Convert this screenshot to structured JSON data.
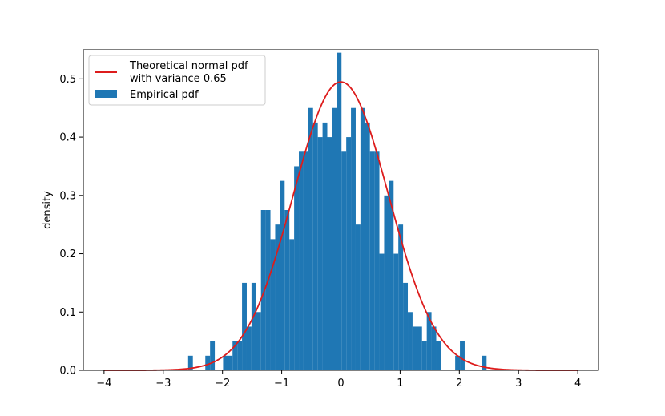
{
  "chart_data": {
    "type": "bar",
    "title": "",
    "xlabel": "",
    "ylabel": "density",
    "xlim": [
      -4.35,
      4.35
    ],
    "ylim": [
      0,
      0.55
    ],
    "grid": false,
    "legend_position": "top-left",
    "x_ticks": [
      -4,
      -3,
      -2,
      -1,
      0,
      1,
      2,
      3,
      4
    ],
    "x_tick_labels": [
      "−4",
      "−3",
      "−2",
      "−1",
      "0",
      "1",
      "2",
      "3",
      "4"
    ],
    "y_ticks": [
      0.0,
      0.1,
      0.2,
      0.3,
      0.4,
      0.5
    ],
    "y_tick_labels": [
      "0.0",
      "0.1",
      "0.2",
      "0.3",
      "0.4",
      "0.5"
    ],
    "histogram": {
      "name": "Empirical pdf",
      "color": "#1f77b4",
      "bins": [
        {
          "x0": -2.58,
          "x1": -2.5,
          "density": 0.025
        },
        {
          "x0": -2.29,
          "x1": -2.21,
          "density": 0.025
        },
        {
          "x0": -2.21,
          "x1": -2.13,
          "density": 0.05
        },
        {
          "x0": -1.99,
          "x1": -1.91,
          "density": 0.025
        },
        {
          "x0": -1.91,
          "x1": -1.83,
          "density": 0.025
        },
        {
          "x0": -1.83,
          "x1": -1.75,
          "density": 0.05
        },
        {
          "x0": -1.75,
          "x1": -1.67,
          "density": 0.05
        },
        {
          "x0": -1.67,
          "x1": -1.59,
          "density": 0.15
        },
        {
          "x0": -1.59,
          "x1": -1.51,
          "density": 0.075
        },
        {
          "x0": -1.51,
          "x1": -1.43,
          "density": 0.15
        },
        {
          "x0": -1.43,
          "x1": -1.35,
          "density": 0.1
        },
        {
          "x0": -1.35,
          "x1": -1.27,
          "density": 0.275
        },
        {
          "x0": -1.27,
          "x1": -1.19,
          "density": 0.275
        },
        {
          "x0": -1.19,
          "x1": -1.11,
          "density": 0.225
        },
        {
          "x0": -1.11,
          "x1": -1.03,
          "density": 0.25
        },
        {
          "x0": -1.03,
          "x1": -0.95,
          "density": 0.325
        },
        {
          "x0": -0.95,
          "x1": -0.87,
          "density": 0.275
        },
        {
          "x0": -0.87,
          "x1": -0.79,
          "density": 0.225
        },
        {
          "x0": -0.79,
          "x1": -0.71,
          "density": 0.35
        },
        {
          "x0": -0.71,
          "x1": -0.63,
          "density": 0.375
        },
        {
          "x0": -0.63,
          "x1": -0.55,
          "density": 0.375
        },
        {
          "x0": -0.55,
          "x1": -0.47,
          "density": 0.45
        },
        {
          "x0": -0.47,
          "x1": -0.39,
          "density": 0.425
        },
        {
          "x0": -0.39,
          "x1": -0.31,
          "density": 0.4
        },
        {
          "x0": -0.31,
          "x1": -0.23,
          "density": 0.425
        },
        {
          "x0": -0.23,
          "x1": -0.15,
          "density": 0.4
        },
        {
          "x0": -0.15,
          "x1": -0.07,
          "density": 0.45
        },
        {
          "x0": -0.07,
          "x1": 0.01,
          "density": 0.545
        },
        {
          "x0": 0.01,
          "x1": 0.09,
          "density": 0.375
        },
        {
          "x0": 0.09,
          "x1": 0.17,
          "density": 0.4
        },
        {
          "x0": 0.17,
          "x1": 0.25,
          "density": 0.45
        },
        {
          "x0": 0.25,
          "x1": 0.33,
          "density": 0.25
        },
        {
          "x0": 0.33,
          "x1": 0.41,
          "density": 0.45
        },
        {
          "x0": 0.41,
          "x1": 0.49,
          "density": 0.425
        },
        {
          "x0": 0.49,
          "x1": 0.57,
          "density": 0.375
        },
        {
          "x0": 0.57,
          "x1": 0.65,
          "density": 0.375
        },
        {
          "x0": 0.65,
          "x1": 0.73,
          "density": 0.2
        },
        {
          "x0": 0.73,
          "x1": 0.81,
          "density": 0.3
        },
        {
          "x0": 0.81,
          "x1": 0.89,
          "density": 0.325
        },
        {
          "x0": 0.89,
          "x1": 0.97,
          "density": 0.2
        },
        {
          "x0": 0.97,
          "x1": 1.05,
          "density": 0.25
        },
        {
          "x0": 1.05,
          "x1": 1.13,
          "density": 0.15
        },
        {
          "x0": 1.13,
          "x1": 1.21,
          "density": 0.1
        },
        {
          "x0": 1.21,
          "x1": 1.29,
          "density": 0.075
        },
        {
          "x0": 1.29,
          "x1": 1.37,
          "density": 0.075
        },
        {
          "x0": 1.37,
          "x1": 1.45,
          "density": 0.05
        },
        {
          "x0": 1.45,
          "x1": 1.53,
          "density": 0.1
        },
        {
          "x0": 1.53,
          "x1": 1.61,
          "density": 0.075
        },
        {
          "x0": 1.61,
          "x1": 1.69,
          "density": 0.05
        },
        {
          "x0": 1.93,
          "x1": 2.01,
          "density": 0.025
        },
        {
          "x0": 2.01,
          "x1": 2.09,
          "density": 0.05
        },
        {
          "x0": 2.38,
          "x1": 2.46,
          "density": 0.025
        }
      ]
    },
    "curve": {
      "name": "Theoretical normal pdf\nwith variance 0.65",
      "color": "#dd1c1c",
      "mean": 0,
      "variance": 0.65,
      "x_range": [
        -4,
        4
      ]
    },
    "legend": {
      "line_label_1": "Theoretical normal pdf",
      "line_label_2": "with variance 0.65",
      "bar_label": "Empirical pdf"
    }
  }
}
